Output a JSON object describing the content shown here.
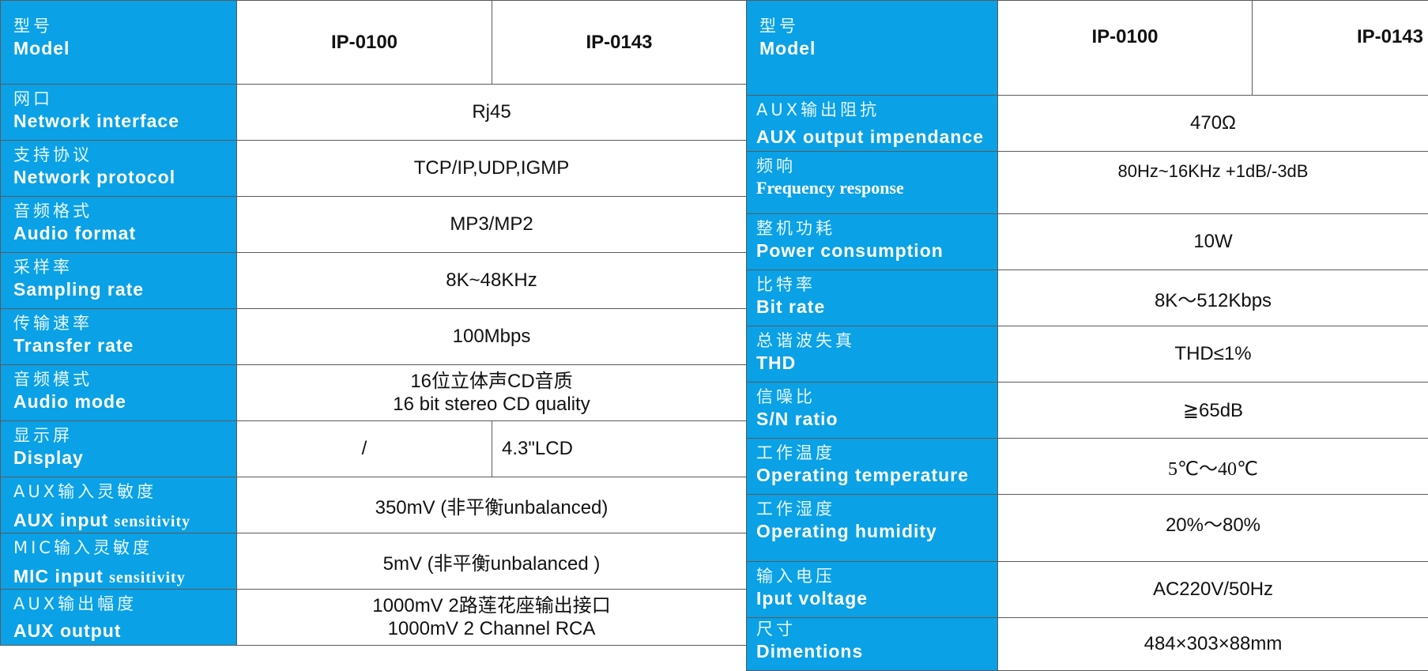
{
  "left": {
    "model_row": {
      "zh": "型号",
      "en": "Model",
      "col1": "IP-0100",
      "col2": "IP-0143"
    },
    "rows": [
      {
        "zh": "网口",
        "en": "Network interface",
        "value": "Rj45"
      },
      {
        "zh": "支持协议",
        "en": "Network protocol",
        "value": "TCP/IP,UDP,IGMP"
      },
      {
        "zh": "音频格式",
        "en": "Audio format",
        "value": "MP3/MP2"
      },
      {
        "zh": "采样率",
        "en": "Sampling rate",
        "value": "8K~48KHz"
      },
      {
        "zh": "传输速率",
        "en": "Transfer rate",
        "value": "100Mbps"
      },
      {
        "zh": "音频模式",
        "en": "Audio mode",
        "value_line1": "16位立体声CD音质",
        "value_line2": "16 bit stereo CD quality"
      },
      {
        "zh": "显示屏",
        "en": "Display",
        "value_col1": "/",
        "value_col2": "4.3\"LCD"
      },
      {
        "zh": "AUX输入灵敏度",
        "en": "AUX input",
        "en_small": "sensitivity",
        "value": "350mV (非平衡unbalanced)"
      },
      {
        "zh": "MIC输入灵敏度",
        "en": "MIC input",
        "en_small": "sensitivity",
        "value": "5mV  (非平衡unbalanced )"
      },
      {
        "zh": "AUX输出幅度",
        "en": "AUX output",
        "value_line1": "1000mV  2路莲花座输出接口",
        "value_line2": "1000mV 2 Channel RCA"
      }
    ]
  },
  "right": {
    "model_row": {
      "zh": "型号",
      "en": "Model",
      "col1": "IP-0100",
      "col2": "IP-0143"
    },
    "rows": [
      {
        "zh": "AUX输出阻抗",
        "en": "AUX output impendance",
        "value": "470Ω"
      },
      {
        "zh": "频响",
        "en": "Frequency response",
        "value": "80Hz~16KHz +1dB/-3dB"
      },
      {
        "zh": "整机功耗",
        "en": "Power consumption",
        "value": "10W"
      },
      {
        "zh": "比特率",
        "en": "Bit rate",
        "value": "8K～512Kbps"
      },
      {
        "zh": "总谐波失真",
        "en": "THD",
        "value": "THD≤1%"
      },
      {
        "zh": "信噪比",
        "en": "S/N ratio",
        "value": "≧65dB"
      },
      {
        "zh": "工作温度",
        "en": "Operating temperature",
        "value": "5℃～40℃"
      },
      {
        "zh": "工作湿度",
        "en": "Operating humidity",
        "value": "20%～80%"
      },
      {
        "zh": "输入电压",
        "en": "Iput voltage",
        "value": "AC220V/50Hz"
      },
      {
        "zh": "尺寸",
        "en": "Dimentions",
        "value": "484×303×88mm"
      }
    ]
  },
  "colors": {
    "label_bg": "#0aa1e6",
    "border": "#5a5a5a"
  }
}
